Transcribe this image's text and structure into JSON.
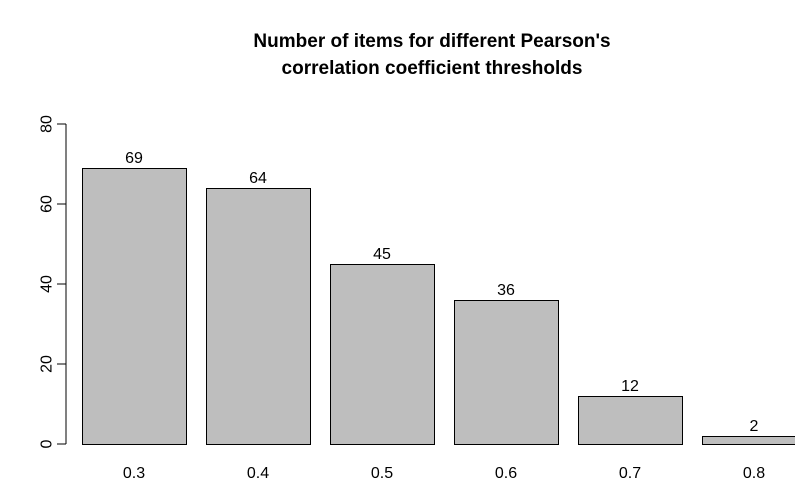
{
  "chart_data": {
    "type": "bar",
    "title_lines": [
      "Number of items for different Pearson's",
      "correlation coefficient thresholds"
    ],
    "categories": [
      "0.3",
      "0.4",
      "0.5",
      "0.6",
      "0.7",
      "0.8"
    ],
    "values": [
      69,
      64,
      45,
      36,
      12,
      2
    ],
    "data_labels": [
      "69",
      "64",
      "45",
      "36",
      "12",
      "2"
    ],
    "ylim": [
      0,
      80
    ],
    "yticks": [
      0,
      20,
      40,
      60,
      80
    ],
    "ytick_labels": [
      "0",
      "20",
      "40",
      "60",
      "80"
    ],
    "xlabel": "",
    "ylabel": "",
    "grid": false,
    "bar_fill": "#bebebe",
    "bar_stroke": "#000000"
  }
}
